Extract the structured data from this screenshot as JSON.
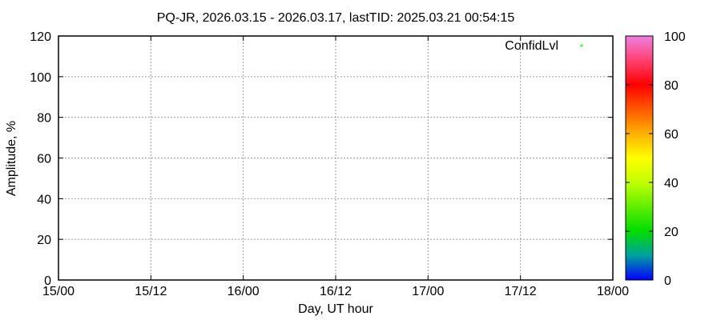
{
  "chart_data": {
    "type": "scatter",
    "title": "PQ-JR, 2026.03.15 - 2026.03.17, lastTID: 2025.03.21 00:54:15",
    "xlabel": "Day, UT hour",
    "ylabel": "Amplitude, %",
    "x_tick_labels": [
      "15/00",
      "15/12",
      "16/00",
      "16/12",
      "17/00",
      "17/12",
      "18/00"
    ],
    "y_ticks": [
      0,
      20,
      40,
      60,
      80,
      100,
      120
    ],
    "ylim": [
      0,
      120
    ],
    "grid": true,
    "legend": {
      "entries": [
        "ConfidLvl"
      ],
      "placement": "top-right",
      "marker_color": "#00ff00"
    },
    "series": [
      {
        "name": "ConfidLvl",
        "points": []
      }
    ],
    "colorbar": {
      "range": [
        0,
        100
      ],
      "ticks": [
        0,
        20,
        40,
        60,
        80,
        100
      ],
      "stops": [
        {
          "value": 0,
          "color": "#0000ff"
        },
        {
          "value": 10,
          "color": "#00a0a0"
        },
        {
          "value": 20,
          "color": "#00dd00"
        },
        {
          "value": 40,
          "color": "#c0ff00"
        },
        {
          "value": 50,
          "color": "#ffff00"
        },
        {
          "value": 60,
          "color": "#ffb000"
        },
        {
          "value": 80,
          "color": "#ff0000"
        },
        {
          "value": 90,
          "color": "#ff4070"
        },
        {
          "value": 100,
          "color": "#ee80e0"
        }
      ]
    }
  }
}
